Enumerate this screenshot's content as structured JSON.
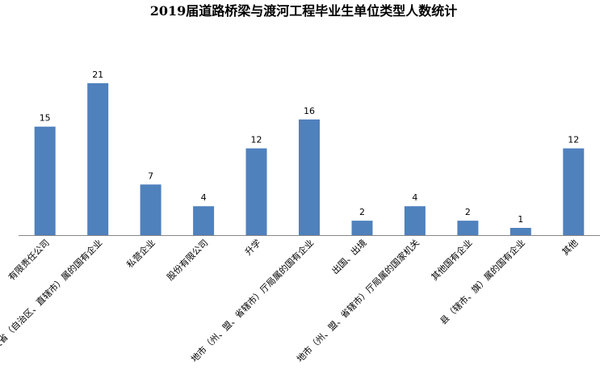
{
  "colors": {
    "bar": "#4f81bd",
    "axis": "#888888",
    "text": "#000000"
  },
  "chart_data": {
    "type": "bar",
    "title": "2019届道路桥梁与渡河工程毕业生单位类型人数统计",
    "xlabel": "",
    "ylabel": "",
    "ylim": [
      0,
      21
    ],
    "grid": false,
    "legend": "none",
    "categories": [
      "有限责任公司",
      "央及省（自治区、直辖市）属的国有企业",
      "私营企业",
      "股份有限公司",
      "升学",
      "地市（州、盟、省辖市）厅局属的国有企业",
      "出国、出境",
      "地市（州、盟、省辖市）厅局属的国家机关",
      "其他国有企业",
      "县（辖市、旗）属的国有企业",
      "其他"
    ],
    "values": [
      15,
      21,
      7,
      4,
      12,
      16,
      2,
      4,
      2,
      1,
      12
    ],
    "data_labels": [
      "15",
      "21",
      "7",
      "4",
      "12",
      "16",
      "2",
      "4",
      "2",
      "1",
      "12"
    ]
  }
}
